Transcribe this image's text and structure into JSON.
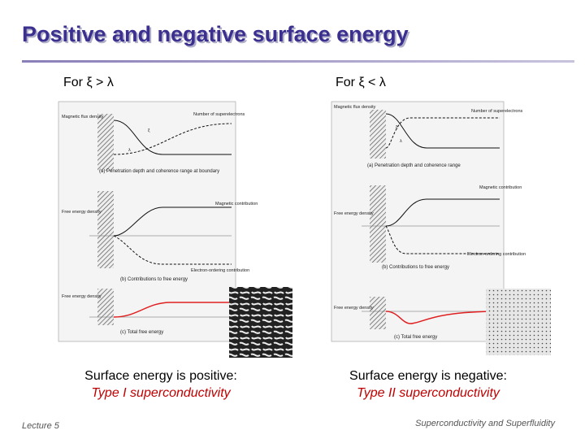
{
  "header": {
    "title": "Positive and negative surface energy"
  },
  "panels": [
    {
      "heading": "For ξ > λ",
      "figure": {
        "flux_label": "Magnetic flux density",
        "electrons_label": "Number of superelectrons",
        "xi": "ξ",
        "lambda": "λ",
        "caption_a": "(a) Penetration depth and coherence range at boundary",
        "magnetic_label": "Magnetic contribution",
        "free_energy_label": "Free energy density",
        "ordering_label": "Electron-ordering contribution",
        "caption_b": "(b) Contributions to free energy",
        "total_label": "Free energy density",
        "caption_c": "(c) Total free energy"
      },
      "caption": "Surface energy is positive:",
      "subcaption": "Type I superconductivity"
    },
    {
      "heading": "For ξ < λ",
      "figure": {
        "flux_label": "Magnetic flux density",
        "electrons_label": "Number of superelectrons",
        "xi": "ξ",
        "lambda": "λ",
        "caption_a": "(a) Penetration depth and coherence range",
        "magnetic_label": "Magnetic contribution",
        "free_energy_label": "Free energy density",
        "ordering_label": "Electron-ordering contribution",
        "caption_b": "(b) Contributions to free energy",
        "total_label": "Free energy density",
        "caption_c": "(c) Total free energy"
      },
      "caption": "Surface energy is negative:",
      "subcaption": "Type II superconductivity"
    }
  ],
  "footer": {
    "left": "Lecture 5",
    "right": "Superconductivity and Superfluidity"
  }
}
